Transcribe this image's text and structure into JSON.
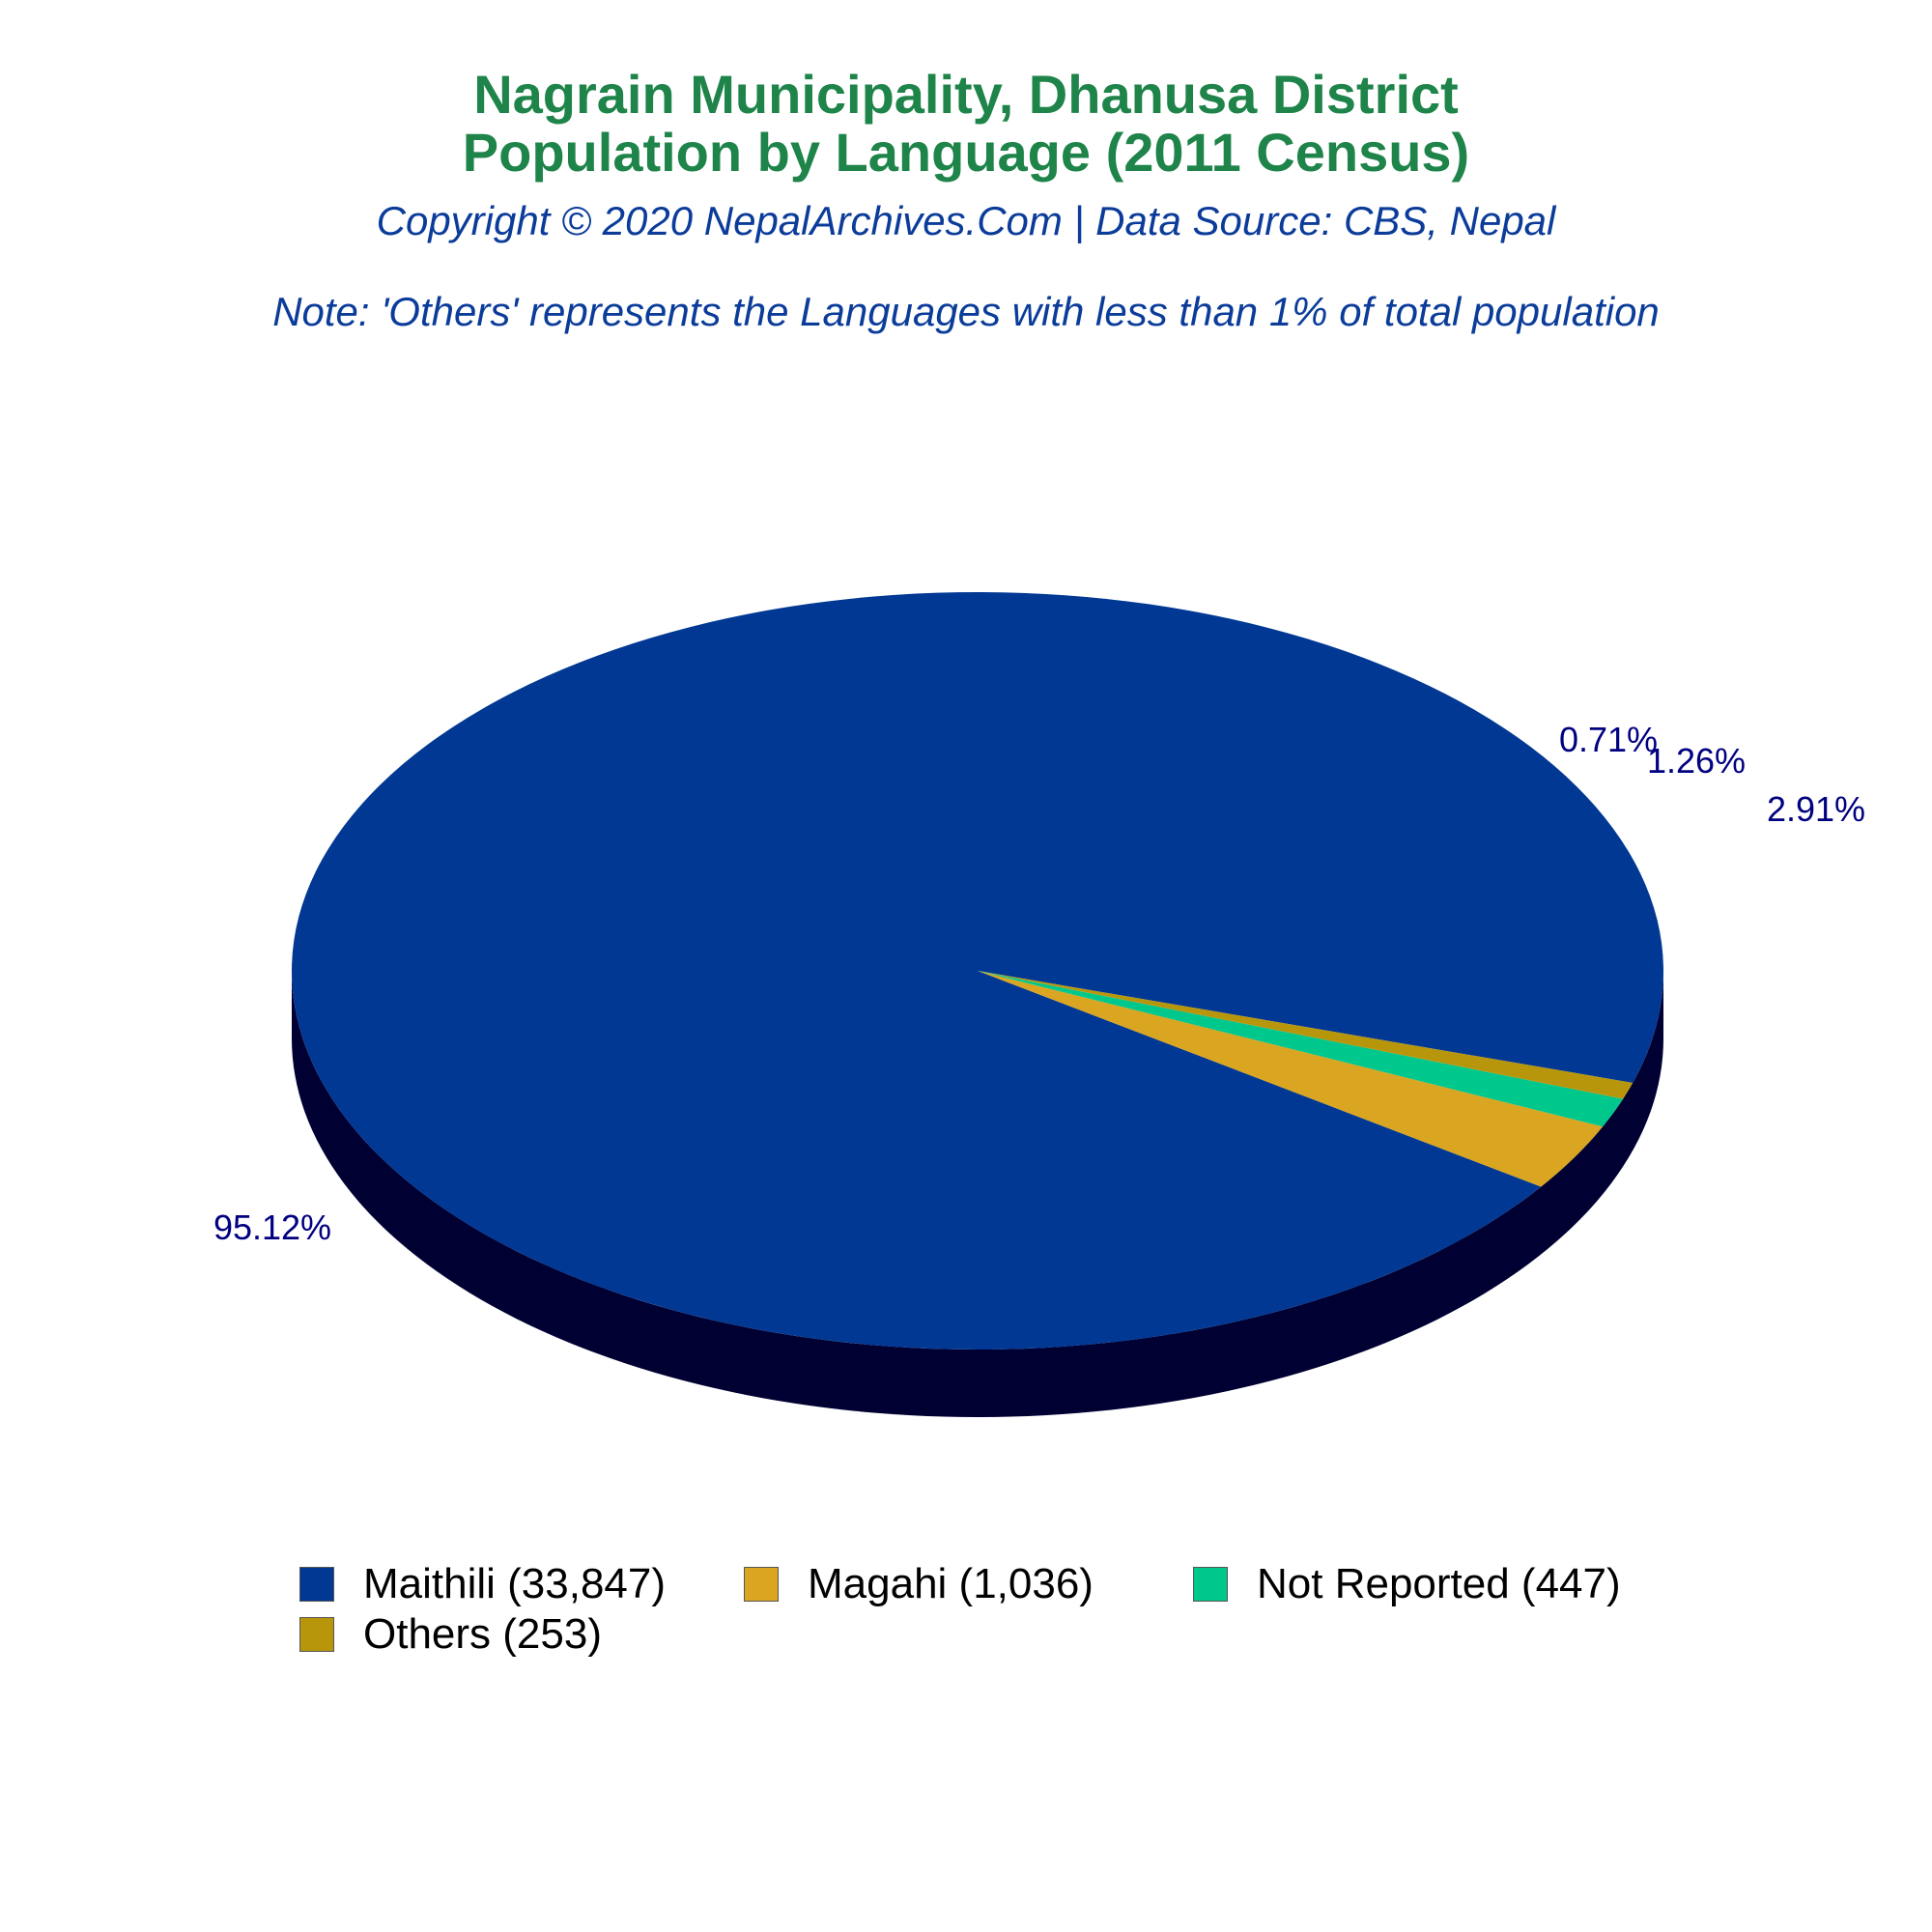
{
  "header": {
    "title_line1": "Nagrain Municipality, Dhanusa District",
    "title_line2": "Population by Language (2011 Census)",
    "copyright": "Copyright © 2020 NepalArchives.Com | Data Source: CBS, Nepal",
    "note": "Note: 'Others' represents the Languages with less than 1% of total population"
  },
  "colors": {
    "title": "#1e8449",
    "subtitle": "#0b3c9a",
    "data_label": "#000080",
    "pie_side": "#000033"
  },
  "chart_data": {
    "type": "pie",
    "title": "Nagrain Municipality, Dhanusa District Population by Language (2011 Census)",
    "style": "3d",
    "legend_position": "bottom",
    "slices": [
      {
        "label": "Maithili (33,847)",
        "value": 33847,
        "percent_label": "95.12%",
        "color": "#003893"
      },
      {
        "label": "Magahi (1,036)",
        "value": 1036,
        "percent_label": "2.91%",
        "color": "#daa520"
      },
      {
        "label": "Not Reported (447)",
        "value": 447,
        "percent_label": "1.26%",
        "color": "#00c78c"
      },
      {
        "label": "Others (253)",
        "value": 253,
        "percent_label": "0.71%",
        "color": "#b8960c"
      }
    ]
  }
}
